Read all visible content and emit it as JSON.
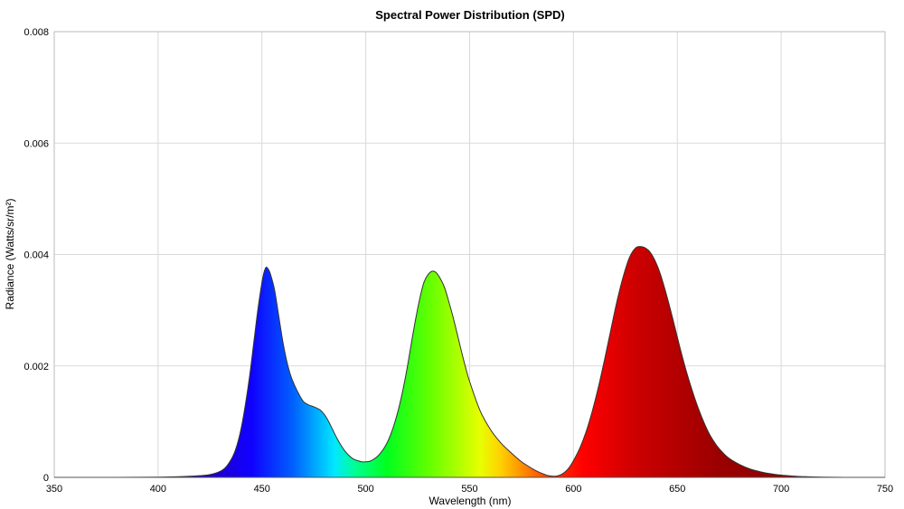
{
  "chart_data": {
    "type": "area",
    "title": "Spectral Power Distribution (SPD)",
    "xlabel": "Wavelength (nm)",
    "ylabel": "Radiance (Watts/sr/m²)",
    "xlim": [
      350,
      750
    ],
    "ylim": [
      0,
      0.008
    ],
    "x_ticks": [
      350,
      400,
      450,
      500,
      550,
      600,
      650,
      700,
      750
    ],
    "y_ticks": [
      0,
      0.002,
      0.004,
      0.006,
      0.008
    ],
    "x_tick_labels": [
      "350",
      "400",
      "450",
      "500",
      "550",
      "600",
      "650",
      "700",
      "750"
    ],
    "y_tick_labels": [
      "0",
      "0.002",
      "0.004",
      "0.006",
      "0.008"
    ],
    "grid": true,
    "fill": "wavelength-spectrum",
    "line_color": "#333333",
    "series": [
      {
        "x": [
          350,
          380,
          400,
          410,
          420,
          425,
          430,
          433,
          436,
          438,
          440,
          442,
          444,
          446,
          448,
          450,
          451,
          452,
          453,
          454,
          456,
          458,
          460,
          462,
          464,
          466,
          468,
          470,
          472,
          474,
          476,
          478,
          480,
          482,
          484,
          486,
          488,
          490,
          492,
          494,
          496,
          498,
          500,
          502,
          504,
          506,
          508,
          510,
          512,
          514,
          516,
          518,
          520,
          522,
          524,
          526,
          528,
          530,
          532,
          534,
          536,
          538,
          540,
          542,
          544,
          546,
          548,
          550,
          555,
          560,
          565,
          570,
          575,
          580,
          583,
          586,
          588,
          590,
          592,
          594,
          596,
          598,
          600,
          603,
          606,
          609,
          612,
          615,
          618,
          621,
          624,
          627,
          630,
          633,
          636,
          638,
          640,
          642,
          645,
          648,
          651,
          654,
          657,
          660,
          663,
          666,
          669,
          672,
          675,
          680,
          685,
          690,
          695,
          700,
          705,
          710,
          715,
          720,
          725,
          730,
          750
        ],
        "y": [
          0,
          0,
          5e-06,
          1.2e-05,
          3e-05,
          5e-05,
          0.00011,
          0.0002,
          0.00038,
          0.00058,
          0.00088,
          0.0013,
          0.0018,
          0.0024,
          0.003,
          0.0035,
          0.00368,
          0.00377,
          0.00374,
          0.00366,
          0.00338,
          0.00292,
          0.00245,
          0.00208,
          0.00181,
          0.00163,
          0.00148,
          0.00136,
          0.00131,
          0.00128,
          0.00125,
          0.00121,
          0.00113,
          0.00101,
          0.00086,
          0.00071,
          0.00058,
          0.00047,
          0.00039,
          0.00033,
          0.0003,
          0.00028,
          0.00028,
          0.00029,
          0.00033,
          0.00039,
          0.00048,
          0.0006,
          0.00077,
          0.00099,
          0.00126,
          0.00159,
          0.00198,
          0.00242,
          0.00284,
          0.00321,
          0.0035,
          0.00364,
          0.0037,
          0.00367,
          0.00356,
          0.0034,
          0.00315,
          0.00288,
          0.00258,
          0.00227,
          0.00198,
          0.00172,
          0.0012,
          0.00086,
          0.00062,
          0.00044,
          0.00028,
          0.00016,
          0.0001,
          5.5e-05,
          3e-05,
          2e-05,
          2.5e-05,
          5e-05,
          0.0001,
          0.00018,
          0.0003,
          0.00052,
          0.00081,
          0.00118,
          0.00162,
          0.00212,
          0.00265,
          0.00317,
          0.00361,
          0.00395,
          0.00412,
          0.00414,
          0.00408,
          0.00398,
          0.00383,
          0.00363,
          0.00325,
          0.00282,
          0.00237,
          0.00195,
          0.00158,
          0.00125,
          0.00097,
          0.00074,
          0.00057,
          0.00044,
          0.00034,
          0.00023,
          0.00015,
          0.0001,
          6.5e-05,
          4e-05,
          2.5e-05,
          1.5e-05,
          8e-06,
          4e-06,
          2e-06,
          1e-06,
          0
        ]
      }
    ]
  }
}
